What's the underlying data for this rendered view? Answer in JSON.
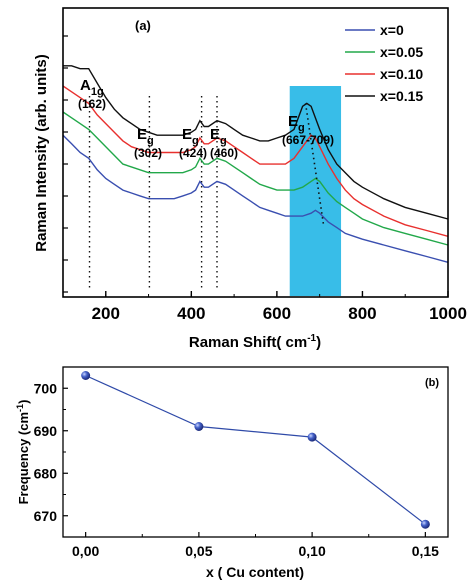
{
  "chart_data": [
    {
      "type": "line",
      "panel_label": "(a)",
      "xlabel": "Raman Shift( cm",
      "xlabel_sup": "-1",
      "xlabel_close": ")",
      "ylabel": "Raman Intensity (arb. units)",
      "xlim": [
        100,
        1000
      ],
      "xticks": [
        "200",
        "400",
        "600",
        "800",
        "1000"
      ],
      "highlight_band": [
        630,
        750
      ],
      "highlight_color": "#38bde8",
      "grid": false,
      "legend_position": "top-right",
      "series": [
        {
          "name": "x=0",
          "color": "#3a4fb0",
          "x": [
            100,
            120,
            140,
            160,
            180,
            200,
            220,
            240,
            260,
            280,
            300,
            320,
            340,
            360,
            380,
            400,
            410,
            420,
            430,
            440,
            460,
            480,
            500,
            520,
            540,
            560,
            580,
            600,
            620,
            640,
            660,
            680,
            690,
            700,
            720,
            740,
            760,
            780,
            800,
            850,
            900,
            950,
            1000
          ],
          "y": [
            0.56,
            0.53,
            0.5,
            0.48,
            0.44,
            0.41,
            0.39,
            0.37,
            0.36,
            0.35,
            0.34,
            0.34,
            0.34,
            0.34,
            0.35,
            0.36,
            0.37,
            0.4,
            0.38,
            0.38,
            0.4,
            0.39,
            0.37,
            0.35,
            0.33,
            0.31,
            0.3,
            0.29,
            0.28,
            0.28,
            0.28,
            0.29,
            0.3,
            0.29,
            0.26,
            0.24,
            0.22,
            0.21,
            0.2,
            0.18,
            0.16,
            0.14,
            0.12
          ]
        },
        {
          "name": "x=0.05",
          "color": "#22a84a",
          "x": [
            100,
            120,
            140,
            160,
            180,
            200,
            220,
            240,
            260,
            280,
            300,
            320,
            340,
            360,
            380,
            400,
            410,
            420,
            430,
            440,
            460,
            480,
            500,
            520,
            540,
            560,
            580,
            600,
            620,
            640,
            660,
            680,
            690,
            700,
            720,
            740,
            760,
            780,
            800,
            850,
            900,
            950,
            1000
          ],
          "y": [
            0.64,
            0.62,
            0.6,
            0.58,
            0.55,
            0.52,
            0.49,
            0.46,
            0.45,
            0.44,
            0.43,
            0.43,
            0.43,
            0.43,
            0.43,
            0.44,
            0.45,
            0.48,
            0.46,
            0.46,
            0.48,
            0.47,
            0.45,
            0.43,
            0.41,
            0.39,
            0.38,
            0.37,
            0.37,
            0.37,
            0.38,
            0.4,
            0.41,
            0.4,
            0.36,
            0.33,
            0.31,
            0.29,
            0.27,
            0.24,
            0.22,
            0.2,
            0.18
          ]
        },
        {
          "name": "x=0.10",
          "color": "#e8302e",
          "x": [
            100,
            120,
            140,
            160,
            180,
            200,
            220,
            240,
            260,
            280,
            300,
            320,
            340,
            360,
            380,
            400,
            410,
            420,
            430,
            440,
            460,
            480,
            500,
            520,
            540,
            560,
            580,
            600,
            620,
            640,
            660,
            680,
            690,
            700,
            720,
            740,
            760,
            780,
            800,
            850,
            900,
            950,
            1000
          ],
          "y": [
            0.73,
            0.71,
            0.69,
            0.67,
            0.63,
            0.6,
            0.57,
            0.54,
            0.52,
            0.51,
            0.5,
            0.5,
            0.5,
            0.5,
            0.5,
            0.51,
            0.52,
            0.55,
            0.53,
            0.53,
            0.55,
            0.54,
            0.52,
            0.5,
            0.48,
            0.46,
            0.46,
            0.46,
            0.46,
            0.48,
            0.52,
            0.56,
            0.55,
            0.52,
            0.46,
            0.41,
            0.37,
            0.34,
            0.32,
            0.28,
            0.25,
            0.23,
            0.21
          ]
        },
        {
          "name": "x=0.15",
          "color": "#111111",
          "x": [
            100,
            120,
            140,
            160,
            180,
            200,
            220,
            240,
            260,
            280,
            300,
            320,
            340,
            360,
            380,
            400,
            410,
            420,
            430,
            440,
            460,
            480,
            500,
            520,
            540,
            560,
            580,
            600,
            620,
            640,
            660,
            670,
            680,
            700,
            720,
            740,
            760,
            780,
            800,
            850,
            900,
            950,
            1000
          ],
          "y": [
            0.8,
            0.8,
            0.79,
            0.79,
            0.74,
            0.69,
            0.65,
            0.62,
            0.6,
            0.58,
            0.57,
            0.56,
            0.56,
            0.56,
            0.56,
            0.57,
            0.58,
            0.61,
            0.59,
            0.59,
            0.61,
            0.6,
            0.58,
            0.56,
            0.55,
            0.54,
            0.54,
            0.55,
            0.56,
            0.58,
            0.66,
            0.67,
            0.66,
            0.58,
            0.51,
            0.46,
            0.43,
            0.4,
            0.38,
            0.34,
            0.31,
            0.29,
            0.27
          ]
        }
      ],
      "annotations": [
        {
          "label": "A",
          "sub": "1g",
          "value": "(162)",
          "x": 162
        },
        {
          "label": "E",
          "sub": "g",
          "value": "(302)",
          "x": 302
        },
        {
          "label": "E",
          "sub": "g",
          "value": "(424)",
          "x": 424
        },
        {
          "label": "E",
          "sub": "g",
          "value": "(460)",
          "x": 460
        },
        {
          "label": "E",
          "sub": "g",
          "value": "(667-709)",
          "x": 688
        }
      ],
      "guide_lines": [
        162,
        302,
        424,
        460
      ],
      "shift_line": {
        "x": [
          667,
          709
        ],
        "y": [
          0.67,
          0.25
        ]
      }
    },
    {
      "type": "line",
      "panel_label": "(b)",
      "xlabel": "x ( Cu content)",
      "ylabel": "Frequency (cm",
      "ylabel_sup": "-1",
      "ylabel_close": ")",
      "categories": [
        "0,00",
        "0,05",
        "0,10",
        "0,15"
      ],
      "x": [
        0.0,
        0.05,
        0.1,
        0.15
      ],
      "values": [
        703,
        691,
        688.5,
        668
      ],
      "xlim": [
        -0.01,
        0.16
      ],
      "ylim": [
        665,
        705
      ],
      "yticks": [
        "700",
        "690",
        "680",
        "670"
      ],
      "color": "#2f4aa8",
      "grid": false
    }
  ]
}
